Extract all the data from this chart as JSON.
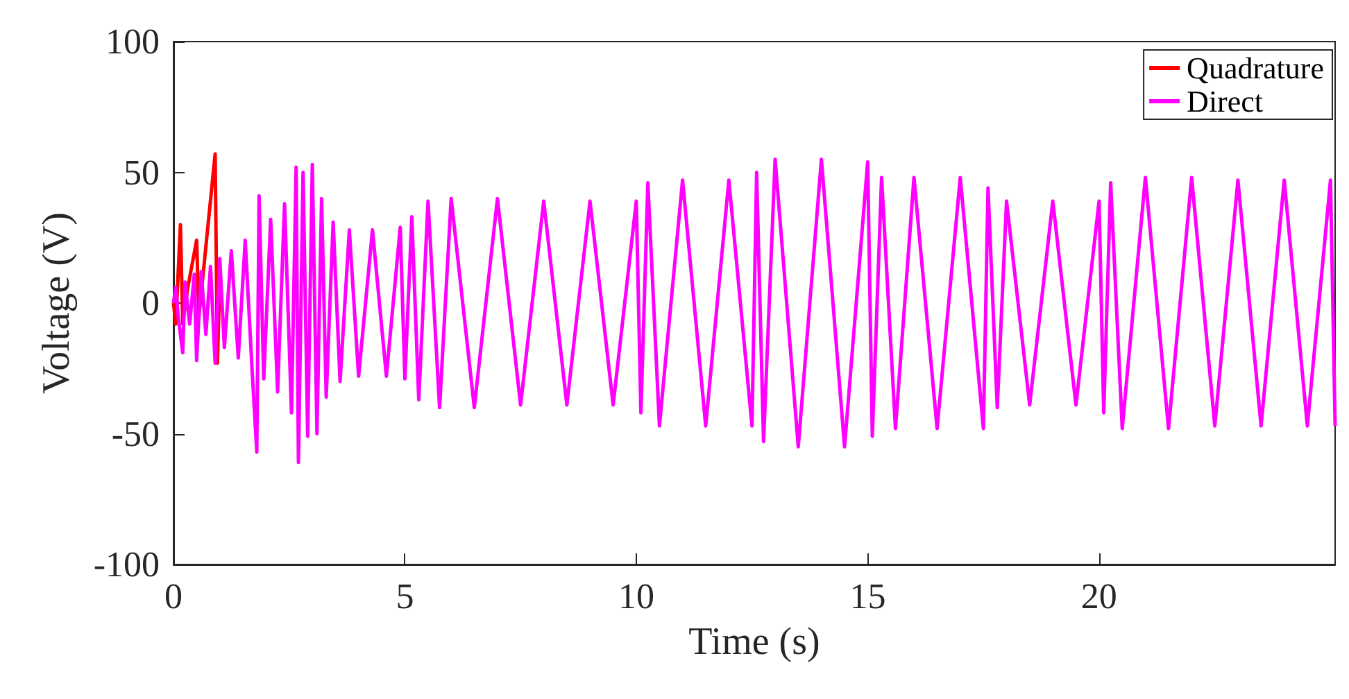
{
  "chart_data": {
    "type": "line",
    "xlabel": "Time (s)",
    "ylabel": "Voltage (V)",
    "xlim": [
      0,
      25.1
    ],
    "xticks": [
      0,
      5,
      10,
      15,
      20
    ],
    "ylim": [
      -100,
      100
    ],
    "yticks": [
      -100,
      -50,
      0,
      50,
      100
    ],
    "grid": false,
    "legend": "top right",
    "marker": "none",
    "line_style": "solid",
    "series": [
      {
        "name": "Quadrature",
        "color": "#ff0000",
        "x": [
          0,
          0.05,
          0.15,
          0.2,
          0.3,
          0.5,
          0.55,
          0.9,
          0.95,
          1.0
        ],
        "values": [
          0,
          -8,
          30,
          -8,
          5,
          24,
          -5,
          57,
          -23,
          10
        ]
      },
      {
        "name": "Direct",
        "color": "#ff00ff",
        "x": [
          0,
          0.05,
          0.1,
          0.2,
          0.25,
          0.35,
          0.45,
          0.5,
          0.6,
          0.7,
          0.8,
          0.9,
          1.0,
          1.1,
          1.25,
          1.4,
          1.55,
          1.7,
          1.8,
          1.85,
          1.95,
          2.1,
          2.25,
          2.4,
          2.55,
          2.65,
          2.7,
          2.8,
          2.9,
          3.0,
          3.1,
          3.2,
          3.3,
          3.45,
          3.6,
          3.8,
          4.0,
          4.3,
          4.6,
          4.9,
          5.0,
          5.15,
          5.3,
          5.5,
          5.75,
          6.0,
          6.5,
          7,
          7.5,
          8,
          8.5,
          9,
          9.5,
          10,
          10.1,
          10.25,
          10.5,
          11,
          11.5,
          12,
          12.5,
          12.6,
          12.75,
          13,
          13.5,
          14,
          14.5,
          15,
          15.1,
          15.3,
          15.6,
          16,
          16.5,
          17,
          17.5,
          17.6,
          17.8,
          18,
          18.5,
          19,
          19.5,
          20,
          20.1,
          20.25,
          20.5,
          21,
          21.5,
          22,
          22.5,
          23,
          23.5,
          24,
          24.5,
          25,
          25.1
        ],
        "values": [
          0,
          6,
          -5,
          -19,
          8,
          -8,
          11,
          -22,
          12,
          -12,
          14,
          -23,
          17,
          -17,
          20,
          -21,
          24,
          -26,
          -57,
          41,
          -29,
          32,
          -34,
          38,
          -42,
          52,
          -61,
          50,
          -51,
          53,
          -50,
          40,
          -36,
          31,
          -30,
          28,
          -28,
          28,
          -28,
          29,
          -29,
          33,
          -37,
          39,
          -40,
          40,
          -40,
          40,
          -39,
          39,
          -39,
          39,
          -39,
          39,
          -42,
          46,
          -47,
          47,
          -47,
          47,
          -47,
          50,
          -53,
          55,
          -55,
          55,
          -55,
          54,
          -51,
          48,
          -48,
          48,
          -48,
          48,
          -48,
          44,
          -40,
          39,
          -39,
          39,
          -39,
          39,
          -42,
          46,
          -48,
          48,
          -48,
          48,
          -47,
          47,
          -47,
          47,
          -47,
          47,
          -47
        ]
      }
    ]
  }
}
